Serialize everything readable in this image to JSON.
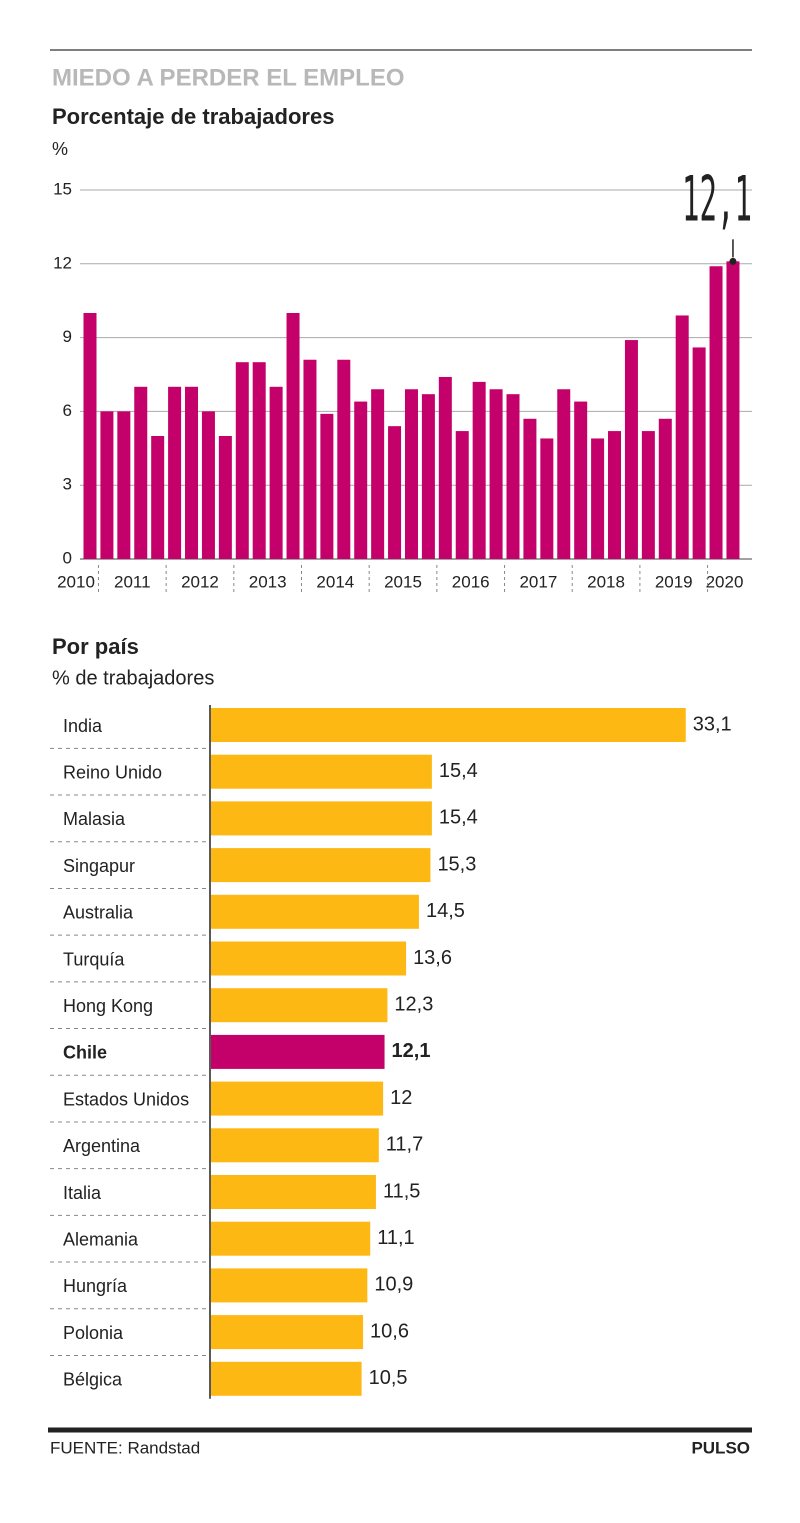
{
  "chart_data": [
    {
      "type": "bar",
      "title": "MIEDO A PERDER EL EMPLEO",
      "subtitle": "Porcentaje de trabajadores",
      "y_label": "%",
      "categories": [
        "2010",
        "2011",
        null,
        null,
        null,
        "2012",
        null,
        null,
        null,
        "2013",
        null,
        null,
        null,
        "2014",
        null,
        null,
        null,
        "2015",
        null,
        null,
        null,
        "2016",
        null,
        null,
        null,
        "2017",
        null,
        null,
        null,
        "2018",
        null,
        null,
        null,
        "2019",
        null,
        null,
        null,
        "2020",
        null
      ],
      "values": [
        10,
        6,
        6,
        7,
        5,
        7,
        7,
        6,
        5,
        8,
        8,
        7,
        10,
        8.1,
        5.9,
        8.1,
        6.4,
        6.9,
        5.4,
        6.9,
        6.7,
        7.4,
        5.2,
        7.2,
        6.9,
        6.7,
        5.7,
        4.9,
        6.9,
        6.4,
        4.9,
        5.2,
        8.9,
        5.2,
        5.7,
        9.9,
        8.6,
        11.9,
        12.1
      ],
      "value_labels": [
        null,
        null,
        null,
        null,
        null,
        null,
        null,
        null,
        null,
        null,
        null,
        null,
        null,
        null,
        null,
        null,
        null,
        null,
        null,
        null,
        null,
        null,
        null,
        null,
        null,
        null,
        null,
        null,
        null,
        null,
        null,
        null,
        null,
        null,
        null,
        null,
        null,
        null,
        "12,1"
      ],
      "color": "#c4006a",
      "ylim": [
        0,
        15
      ],
      "yticks": [
        0,
        3,
        6,
        9,
        12,
        15
      ],
      "grid": true
    },
    {
      "type": "hbar",
      "title": "Por país",
      "subtitle": "% de trabajadores",
      "categories": [
        "India",
        "Reino Unido",
        "Malasia",
        "Singapur",
        "Australia",
        "Turquía",
        "Hong Kong",
        "Chile",
        "Estados Unidos",
        "Argentina",
        "Italia",
        "Alemania",
        "Hungría",
        "Polonia",
        "Bélgica"
      ],
      "values": [
        33.1,
        15.4,
        15.4,
        15.3,
        14.5,
        13.6,
        12.3,
        12.1,
        12,
        11.7,
        11.5,
        11.1,
        10.9,
        10.6,
        10.5
      ],
      "value_labels": [
        "33,1",
        "15,4",
        "15,4",
        "15,3",
        "14,5",
        "13,6",
        "12,3",
        "12,1",
        "12",
        "11,7",
        "11,5",
        "11,1",
        "10,9",
        "10,6",
        "10,5"
      ],
      "colors": [
        "#fdb813",
        "#fdb813",
        "#fdb813",
        "#fdb813",
        "#fdb813",
        "#fdb813",
        "#fdb813",
        "#c4006a",
        "#fdb813",
        "#fdb813",
        "#fdb813",
        "#fdb813",
        "#fdb813",
        "#fdb813",
        "#fdb813"
      ],
      "xlim": [
        0,
        35
      ]
    }
  ],
  "footer": {
    "source": "FUENTE: Randstad",
    "brand": "PULSO"
  }
}
